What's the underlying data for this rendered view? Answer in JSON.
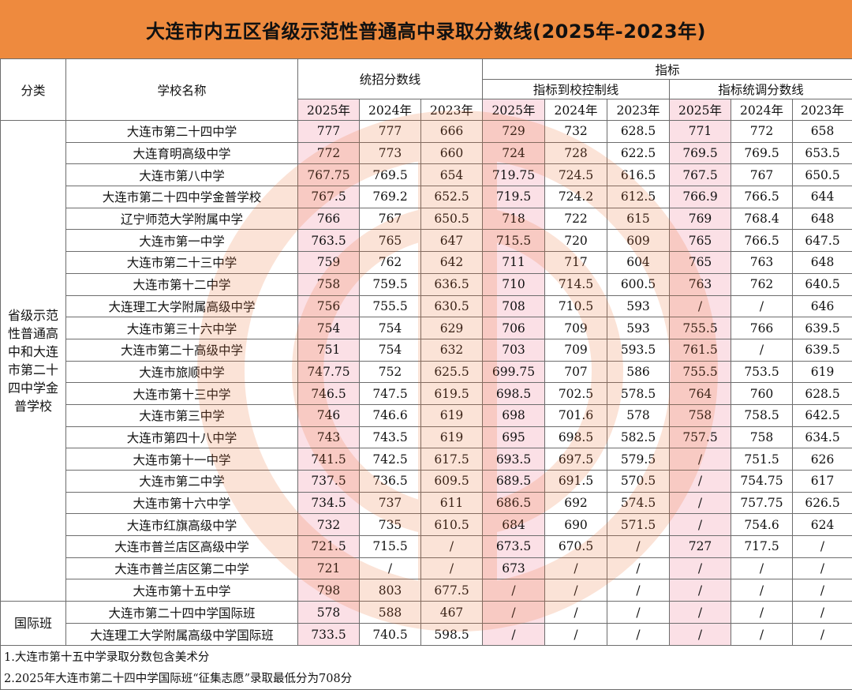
{
  "title": "大连市内五区省级示范性普通高中录取分数线(2025年-2023年)",
  "headers": {
    "category": "分类",
    "school": "学校名称",
    "unified": "统招分数线",
    "quota": "指标",
    "quota_school": "指标到校控制线",
    "quota_adjust": "指标统调分数线",
    "years": [
      "2025年",
      "2024年",
      "2023年",
      "2025年",
      "2024年",
      "2023年",
      "2025年",
      "2024年",
      "2023年"
    ]
  },
  "category_main": "省级示范性普通高中和大连市第二十四中学金普学校",
  "category_intl": "国际班",
  "rows": [
    {
      "school": "大连市第二十四中学",
      "v": [
        "777",
        "777",
        "666",
        "729",
        "732",
        "628.5",
        "771",
        "772",
        "658"
      ]
    },
    {
      "school": "大连育明高级中学",
      "v": [
        "772",
        "773",
        "660",
        "724",
        "728",
        "622.5",
        "769.5",
        "769.5",
        "653.5"
      ]
    },
    {
      "school": "大连市第八中学",
      "v": [
        "767.75",
        "769.5",
        "654",
        "719.75",
        "724.5",
        "616.5",
        "767.5",
        "767",
        "650.5"
      ]
    },
    {
      "school": "大连市第二十四中学金普学校",
      "v": [
        "767.5",
        "769.2",
        "652.5",
        "719.5",
        "724.2",
        "612.5",
        "766.9",
        "766.5",
        "644"
      ]
    },
    {
      "school": "辽宁师范大学附属中学",
      "v": [
        "766",
        "767",
        "650.5",
        "718",
        "722",
        "615",
        "769",
        "768.4",
        "648"
      ]
    },
    {
      "school": "大连市第一中学",
      "v": [
        "763.5",
        "765",
        "647",
        "715.5",
        "720",
        "609",
        "765",
        "766.5",
        "647.5"
      ]
    },
    {
      "school": "大连市第二十三中学",
      "v": [
        "759",
        "762",
        "642",
        "711",
        "717",
        "604",
        "765",
        "763",
        "648"
      ]
    },
    {
      "school": "大连市第十二中学",
      "v": [
        "758",
        "759.5",
        "636.5",
        "710",
        "714.5",
        "600.5",
        "763",
        "762",
        "640.5"
      ]
    },
    {
      "school": "大连理工大学附属高级中学",
      "v": [
        "756",
        "755.5",
        "630.5",
        "708",
        "710.5",
        "593",
        "/",
        "/",
        "646"
      ]
    },
    {
      "school": "大连市第三十六中学",
      "v": [
        "754",
        "754",
        "629",
        "706",
        "709",
        "593",
        "755.5",
        "766",
        "639.5"
      ]
    },
    {
      "school": "大连市第二十高级中学",
      "v": [
        "751",
        "754",
        "632",
        "703",
        "709",
        "593.5",
        "761.5",
        "/",
        "639.5"
      ]
    },
    {
      "school": "大连市旅顺中学",
      "v": [
        "747.75",
        "752",
        "625.5",
        "699.75",
        "707",
        "586",
        "755.5",
        "753.5",
        "619"
      ]
    },
    {
      "school": "大连市第十三中学",
      "v": [
        "746.5",
        "747.5",
        "619.5",
        "698.5",
        "702.5",
        "578.5",
        "764",
        "760",
        "628.5"
      ]
    },
    {
      "school": "大连市第三中学",
      "v": [
        "746",
        "746.6",
        "619",
        "698",
        "701.6",
        "578",
        "758",
        "758.5",
        "642.5"
      ]
    },
    {
      "school": "大连市第四十八中学",
      "v": [
        "743",
        "743.5",
        "619",
        "695",
        "698.5",
        "582.5",
        "757.5",
        "758",
        "634.5"
      ]
    },
    {
      "school": "大连市第十一中学",
      "v": [
        "741.5",
        "742.5",
        "617.5",
        "693.5",
        "697.5",
        "579.5",
        "/",
        "751.5",
        "626"
      ]
    },
    {
      "school": "大连市第二中学",
      "v": [
        "737.5",
        "736.5",
        "609.5",
        "689.5",
        "691.5",
        "570.5",
        "/",
        "754.75",
        "617"
      ]
    },
    {
      "school": "大连市第十六中学",
      "v": [
        "734.5",
        "737",
        "611",
        "686.5",
        "692",
        "574.5",
        "/",
        "757.75",
        "626.5"
      ]
    },
    {
      "school": "大连市红旗高级中学",
      "v": [
        "732",
        "735",
        "610.5",
        "684",
        "690",
        "571.5",
        "/",
        "754.6",
        "624"
      ]
    },
    {
      "school": "大连市普兰店区高级中学",
      "v": [
        "721.5",
        "715.5",
        "/",
        "673.5",
        "670.5",
        "/",
        "727",
        "717.5",
        "/"
      ]
    },
    {
      "school": "大连市普兰店区第二中学",
      "v": [
        "721",
        "/",
        "/",
        "673",
        "/",
        "/",
        "/",
        "/",
        "/"
      ]
    },
    {
      "school": "大连市第十五中学",
      "v": [
        "798",
        "803",
        "677.5",
        "/",
        "/",
        "/",
        "/",
        "/",
        "/"
      ]
    }
  ],
  "intl_rows": [
    {
      "school": "大连市第二十四中学国际班",
      "v": [
        "578",
        "588",
        "467",
        "/",
        "/",
        "/",
        "/",
        "/",
        "/"
      ]
    },
    {
      "school": "大连理工大学附属高级中学国际班",
      "v": [
        "733.5",
        "740.5",
        "598.5",
        "/",
        "/",
        "/",
        "/",
        "/",
        "/"
      ]
    }
  ],
  "notes": [
    "1.大连市第十五中学录取分数包含美术分",
    "2.2025年大连市第二十四中学国际班“征集志愿”录取最低分为708分"
  ],
  "colors": {
    "title_bg": "#ee8a3e",
    "highlight": "#fbe0e6",
    "border": "#6d6d6d"
  }
}
